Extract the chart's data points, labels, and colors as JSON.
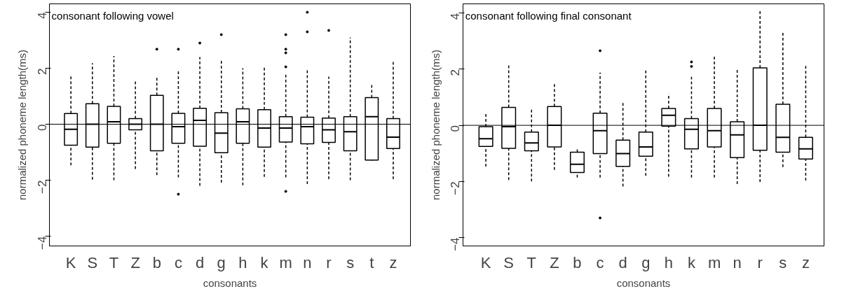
{
  "chart_data": [
    {
      "type": "box",
      "categories": [
        "K",
        "S",
        "T",
        "Z",
        "b",
        "c",
        "d",
        "g",
        "h",
        "k",
        "m",
        "n",
        "r",
        "s",
        "t",
        "z"
      ],
      "xlabel": "consonants",
      "ylabel": "normalized phoneme length(ms)",
      "annotations": [
        "consonant following vowel"
      ],
      "ylim": [
        -4.35,
        4.3
      ],
      "yticks": [
        -4,
        -2,
        0,
        2,
        4
      ],
      "grid": false,
      "ref_lines": [
        {
          "axis": "y",
          "value": 0,
          "color": "#000000"
        }
      ],
      "boxes": [
        {
          "low": -1.47,
          "q1": -0.75,
          "median": -0.18,
          "q3": 0.38,
          "high": 1.73
        },
        {
          "low": -1.98,
          "q1": -0.82,
          "median": 0,
          "q3": 0.73,
          "high": 2.18
        },
        {
          "low": -2.0,
          "q1": -0.68,
          "median": 0.09,
          "q3": 0.64,
          "high": 2.44
        },
        {
          "low": -1.6,
          "q1": -0.2,
          "median": 0,
          "q3": 0.2,
          "high": 1.55
        },
        {
          "low": -1.82,
          "q1": -0.95,
          "median": 0,
          "q3": 1.03,
          "high": 1.71,
          "outliers": [
            2.68
          ]
        },
        {
          "low": -1.9,
          "q1": -0.68,
          "median": -0.09,
          "q3": 0.39,
          "high": 1.9,
          "outliers": [
            2.68,
            -2.5
          ]
        },
        {
          "low": -2.2,
          "q1": -0.79,
          "median": 0.14,
          "q3": 0.57,
          "high": 2.4,
          "outliers": [
            2.9
          ]
        },
        {
          "low": -2.09,
          "q1": -1.02,
          "median": -0.32,
          "q3": 0.41,
          "high": 2.27,
          "outliers": [
            3.2
          ]
        },
        {
          "low": -2.18,
          "q1": -0.68,
          "median": 0.09,
          "q3": 0.55,
          "high": 2.0
        },
        {
          "low": -1.88,
          "q1": -0.82,
          "median": -0.14,
          "q3": 0.52,
          "high": 2.07
        },
        {
          "low": -1.9,
          "q1": -0.64,
          "median": -0.14,
          "q3": 0.27,
          "high": 1.82,
          "outliers": [
            2.05,
            2.55,
            2.68,
            3.2,
            -2.4
          ]
        },
        {
          "low": -2.14,
          "q1": -0.7,
          "median": -0.09,
          "q3": 0.25,
          "high": 2.0,
          "outliers": [
            3.3,
            4.0
          ]
        },
        {
          "low": -1.96,
          "q1": -0.65,
          "median": -0.2,
          "q3": 0.22,
          "high": 1.7,
          "outliers": [
            3.35
          ]
        },
        {
          "low": -2.0,
          "q1": -0.95,
          "median": -0.27,
          "q3": 0.27,
          "high": 3.1
        },
        {
          "low": -1.3,
          "q1": -1.28,
          "median": 0.27,
          "q3": 0.95,
          "high": 1.4
        },
        {
          "low": -1.96,
          "q1": -0.87,
          "median": -0.46,
          "q3": 0.2,
          "high": 2.26
        }
      ]
    },
    {
      "type": "box",
      "categories": [
        "K",
        "S",
        "T",
        "Z",
        "b",
        "c",
        "d",
        "g",
        "h",
        "k",
        "m",
        "n",
        "r",
        "s",
        "z"
      ],
      "xlabel": "consonants",
      "ylabel": "normalized phoneme length(ms)",
      "annotations": [
        "consonant following final consonant"
      ],
      "ylim": [
        -4.3,
        4.33
      ],
      "yticks": [
        -4,
        -2,
        0,
        2,
        4
      ],
      "grid": false,
      "ref_lines": [
        {
          "axis": "y",
          "value": 0,
          "color": "#000000"
        }
      ],
      "boxes": [
        {
          "low": -1.47,
          "q1": -0.75,
          "median": -0.48,
          "q3": -0.05,
          "high": 0.41
        },
        {
          "low": -1.95,
          "q1": -0.82,
          "median": -0.05,
          "q3": 0.64,
          "high": 2.18
        },
        {
          "low": -2.0,
          "q1": -0.91,
          "median": -0.63,
          "q3": -0.24,
          "high": 0.63
        },
        {
          "low": -1.59,
          "q1": -0.77,
          "median": 0,
          "q3": 0.67,
          "high": 1.51
        },
        {
          "low": -1.86,
          "q1": -1.68,
          "median": -1.39,
          "q3": -0.96,
          "high": -0.84
        },
        {
          "low": -1.86,
          "q1": -1.01,
          "median": -0.19,
          "q3": 0.43,
          "high": 1.88,
          "outliers": [
            2.66,
            -3.3
          ]
        },
        {
          "low": -2.18,
          "q1": -1.46,
          "median": -1.01,
          "q3": -0.53,
          "high": 0.82
        },
        {
          "low": -1.8,
          "q1": -1.1,
          "median": -0.77,
          "q3": -0.24,
          "high": 1.97
        },
        {
          "low": -1.83,
          "q1": -0.03,
          "median": 0.36,
          "q3": 0.6,
          "high": 1.13
        },
        {
          "low": -1.86,
          "q1": -0.84,
          "median": -0.14,
          "q3": 0.24,
          "high": 1.73,
          "outliers": [
            2.1,
            2.26
          ]
        },
        {
          "low": -1.86,
          "q1": -0.77,
          "median": -0.19,
          "q3": 0.6,
          "high": 2.5
        },
        {
          "low": -2.09,
          "q1": -1.15,
          "median": -0.34,
          "q3": 0.13,
          "high": 1.99
        },
        {
          "low": -2.02,
          "q1": -0.89,
          "median": 0,
          "q3": 2.05,
          "high": 4.13
        },
        {
          "low": -1.49,
          "q1": -0.96,
          "median": -0.43,
          "q3": 0.75,
          "high": 3.32
        },
        {
          "low": -1.97,
          "q1": -1.2,
          "median": -0.84,
          "q3": -0.43,
          "high": 2.12
        }
      ]
    }
  ]
}
